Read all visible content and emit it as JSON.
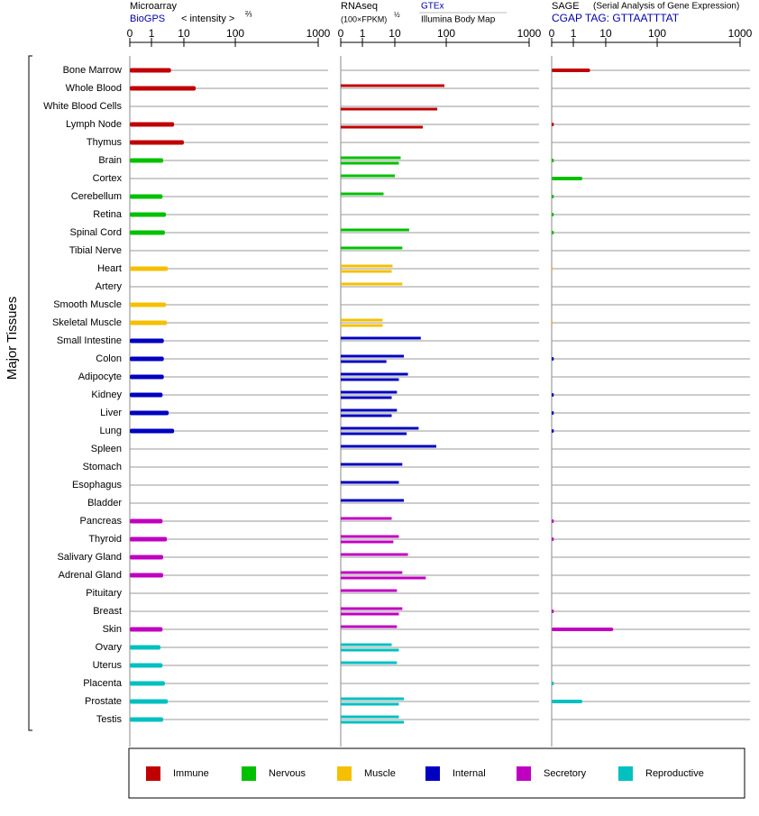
{
  "chart_data": {
    "type": "bar",
    "y_label": "Major Tissues",
    "groups": [
      {
        "name": "Immune",
        "color": "#c00000",
        "categories": [
          "Bone Marrow",
          "Whole Blood",
          "White Blood Cells",
          "Lymph Node",
          "Thymus"
        ]
      },
      {
        "name": "Nervous",
        "color": "#00c000",
        "categories": [
          "Brain",
          "Cortex",
          "Cerebellum",
          "Retina",
          "Spinal Cord",
          "Tibial Nerve"
        ]
      },
      {
        "name": "Muscle",
        "color": "#f5c000",
        "categories": [
          "Heart",
          "Artery",
          "Smooth Muscle",
          "Skeletal Muscle"
        ]
      },
      {
        "name": "Internal",
        "color": "#0000c0",
        "categories": [
          "Small Intestine",
          "Colon",
          "Adipocyte",
          "Kidney",
          "Liver",
          "Lung",
          "Spleen",
          "Stomach",
          "Esophagus",
          "Bladder"
        ]
      },
      {
        "name": "Secretory",
        "color": "#c000c0",
        "categories": [
          "Pancreas",
          "Thyroid",
          "Salivary Gland",
          "Adrenal Gland",
          "Pituitary",
          "Breast",
          "Skin"
        ]
      },
      {
        "name": "Reproductive",
        "color": "#00c0c0",
        "categories": [
          "Ovary",
          "Uterus",
          "Placenta",
          "Prostate",
          "Testis"
        ]
      }
    ],
    "panels": [
      {
        "title": "Microarray",
        "subtitle": "BioGPS",
        "axis_label": "< intensity >",
        "axis_exponent": "⅔",
        "xlim": [
          0,
          1000
        ],
        "xticks": [
          0,
          1,
          10,
          100,
          1000
        ],
        "values": [
          4,
          17,
          null,
          5,
          10,
          2.3,
          null,
          2.2,
          2.8,
          2.6,
          null,
          3.2,
          null,
          2.8,
          3.0,
          2.4,
          2.4,
          2.4,
          2.2,
          3.4,
          5,
          null,
          null,
          null,
          null,
          2.2,
          3.0,
          2.3,
          2.3,
          null,
          null,
          2.2,
          1.9,
          2.2,
          2.6,
          3.2,
          2.3
        ]
      },
      {
        "title": "RNAseq",
        "axis_label": "(100×FPKM)",
        "axis_exponent": "½",
        "xlim": [
          0,
          1000
        ],
        "xticks": [
          0,
          1,
          10,
          100,
          1000
        ],
        "series": [
          {
            "name": "GTEx",
            "values": [
              null,
              92,
              null,
              null,
              null,
              13,
              10,
              4.5,
              null,
              19,
              14,
              8.5,
              14,
              null,
              4.2,
              32,
              15,
              18,
              11,
              11,
              29,
              64,
              14,
              12,
              15,
              8,
              12,
              18,
              14,
              11,
              14,
              11,
              8,
              11,
              null,
              15,
              12
            ]
          },
          {
            "name": "Illumina Body Map",
            "values": [
              null,
              null,
              67,
              35,
              null,
              12,
              null,
              null,
              null,
              null,
              null,
              8,
              null,
              null,
              4.2,
              null,
              5.5,
              12,
              8,
              8,
              17,
              null,
              null,
              null,
              null,
              null,
              9,
              null,
              40,
              null,
              12,
              null,
              12,
              null,
              null,
              12,
              15
            ]
          }
        ]
      },
      {
        "title": "SAGE",
        "note": "(Serial Analysis of Gene Expression)",
        "subtitle": "CGAP TAG: GTTAATTTAT",
        "xlim": [
          0,
          1000
        ],
        "xticks": [
          0,
          1,
          10,
          100,
          1000
        ],
        "values": [
          3.3,
          null,
          null,
          0.1,
          null,
          0.1,
          1.9,
          0.1,
          0.1,
          0.1,
          null,
          0.05,
          null,
          null,
          0.05,
          null,
          0.1,
          null,
          0.1,
          0.1,
          0.1,
          null,
          null,
          null,
          null,
          0.1,
          0.1,
          null,
          null,
          null,
          0.1,
          14,
          null,
          null,
          0.1,
          1.9,
          null
        ]
      }
    ]
  }
}
